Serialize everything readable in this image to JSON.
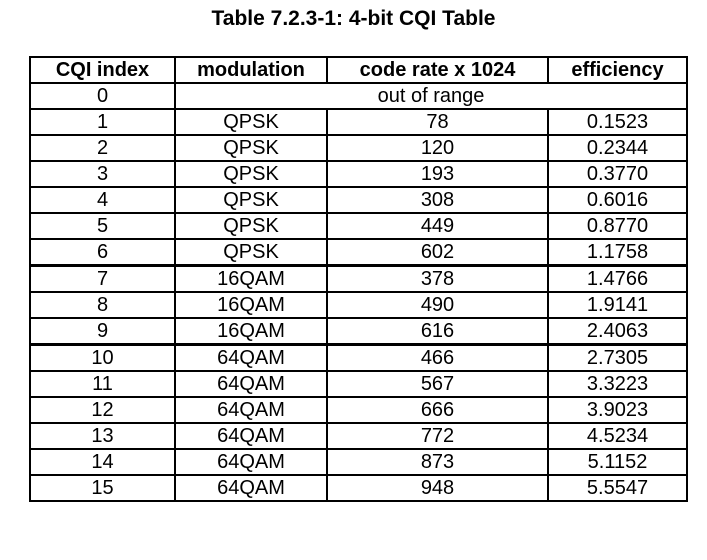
{
  "title": "Table 7.2.3-1: 4-bit CQI Table",
  "table": {
    "headers": [
      "CQI index",
      "modulation",
      "code rate x 1024",
      "efficiency"
    ],
    "out_of_range": {
      "index": "0",
      "text": "out of range"
    },
    "rows": [
      {
        "index": "1",
        "modulation": "QPSK",
        "code_rate": "78",
        "efficiency": "0.1523"
      },
      {
        "index": "2",
        "modulation": "QPSK",
        "code_rate": "120",
        "efficiency": "0.2344"
      },
      {
        "index": "3",
        "modulation": "QPSK",
        "code_rate": "193",
        "efficiency": "0.3770"
      },
      {
        "index": "4",
        "modulation": "QPSK",
        "code_rate": "308",
        "efficiency": "0.6016"
      },
      {
        "index": "5",
        "modulation": "QPSK",
        "code_rate": "449",
        "efficiency": "0.8770"
      },
      {
        "index": "6",
        "modulation": "QPSK",
        "code_rate": "602",
        "efficiency": "1.1758"
      },
      {
        "index": "7",
        "modulation": "16QAM",
        "code_rate": "378",
        "efficiency": "1.4766"
      },
      {
        "index": "8",
        "modulation": "16QAM",
        "code_rate": "490",
        "efficiency": "1.9141"
      },
      {
        "index": "9",
        "modulation": "16QAM",
        "code_rate": "616",
        "efficiency": "2.4063"
      },
      {
        "index": "10",
        "modulation": "64QAM",
        "code_rate": "466",
        "efficiency": "2.7305"
      },
      {
        "index": "11",
        "modulation": "64QAM",
        "code_rate": "567",
        "efficiency": "3.3223"
      },
      {
        "index": "12",
        "modulation": "64QAM",
        "code_rate": "666",
        "efficiency": "3.9023"
      },
      {
        "index": "13",
        "modulation": "64QAM",
        "code_rate": "772",
        "efficiency": "4.5234"
      },
      {
        "index": "14",
        "modulation": "64QAM",
        "code_rate": "873",
        "efficiency": "5.1152"
      },
      {
        "index": "15",
        "modulation": "64QAM",
        "code_rate": "948",
        "efficiency": "5.5547"
      }
    ]
  }
}
